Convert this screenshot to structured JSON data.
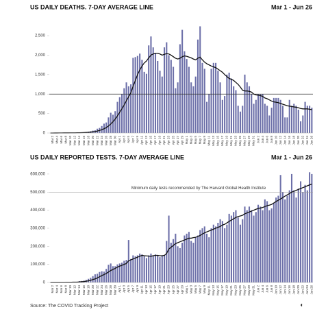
{
  "chart_data": [
    {
      "type": "bar",
      "title": "US DAILY DEATHS. 7-DAY AVERAGE LINE",
      "subtitle": "Mar 1 - Jun 26",
      "categories": [
        null,
        "Mar 2",
        null,
        "Mar 4",
        null,
        "Mar 6",
        null,
        "Mar 8",
        null,
        "Mar 10",
        null,
        "Mar 12",
        null,
        "Mar 14",
        null,
        "Mar 16",
        null,
        "Mar 18",
        null,
        "Mar 20",
        null,
        "Mar 22",
        null,
        "Mar 24",
        null,
        "Mar 26",
        null,
        "Mar 28",
        null,
        "Mar 30",
        null,
        "Apr 1",
        null,
        "Apr 3",
        null,
        "Apr 5",
        null,
        "Apr 7",
        null,
        "Apr 9",
        null,
        "Apr 11",
        null,
        "Apr 13",
        null,
        "Apr 15",
        null,
        "Apr 17",
        null,
        "Apr 19",
        null,
        "Apr 21",
        null,
        "Apr 23",
        null,
        "Apr 25",
        null,
        "Apr 27",
        null,
        "Apr 29",
        null,
        "May 1",
        null,
        "May 3",
        null,
        "May 5",
        null,
        "May 7",
        null,
        "May 9",
        null,
        "May 11",
        null,
        "May 13",
        null,
        "May 15",
        null,
        "May 17",
        null,
        "May 19",
        null,
        "May 21",
        null,
        "May 23",
        null,
        "May 25",
        null,
        "May 27",
        null,
        "May 29",
        null,
        "May 31",
        null,
        "Jun 2",
        null,
        "Jun 4",
        null,
        "Jun 6",
        null,
        "Jun 8",
        null,
        "Jun 10",
        null,
        "Jun 12",
        null,
        "Jun 14",
        null,
        "Jun 16",
        null,
        "Jun 18",
        null,
        "Jun 20",
        null,
        "Jun 22",
        null,
        "Jun 24",
        null,
        "Jun 26"
      ],
      "values": [
        0,
        1,
        2,
        3,
        4,
        2,
        3,
        4,
        3,
        5,
        7,
        8,
        10,
        12,
        15,
        20,
        25,
        35,
        45,
        60,
        70,
        110,
        130,
        180,
        240,
        270,
        400,
        520,
        470,
        560,
        800,
        920,
        1000,
        1150,
        1300,
        1200,
        1250,
        1930,
        1950,
        1980,
        2040,
        1880,
        1570,
        1520,
        2250,
        2480,
        2200,
        2050,
        1850,
        1600,
        1450,
        2200,
        2330,
        2000,
        1880,
        1700,
        1150,
        1300,
        2280,
        2650,
        2100,
        1900,
        1700,
        1300,
        1200,
        1450,
        2400,
        2740,
        1800,
        1650,
        800,
        1000,
        1650,
        1800,
        1800,
        1600,
        1300,
        850,
        950,
        1500,
        1550,
        1400,
        1200,
        1100,
        700,
        550,
        700,
        1500,
        1300,
        1200,
        1000,
        750,
        850,
        1000,
        1000,
        1000,
        750,
        700,
        450,
        650,
        900,
        900,
        900,
        850,
        700,
        400,
        400,
        850,
        700,
        750,
        700,
        600,
        300,
        450,
        800,
        700,
        700,
        650
      ],
      "line_values": [
        0,
        0,
        1,
        1,
        2,
        2,
        3,
        3,
        3,
        4,
        4,
        5,
        6,
        7,
        9,
        11,
        14,
        18,
        23,
        30,
        38,
        50,
        65,
        85,
        110,
        140,
        180,
        230,
        290,
        360,
        440,
        530,
        620,
        720,
        830,
        930,
        1030,
        1200,
        1350,
        1500,
        1620,
        1720,
        1800,
        1850,
        1930,
        2000,
        2030,
        2050,
        2050,
        2030,
        2000,
        2020,
        2040,
        2030,
        2000,
        1960,
        1920,
        1900,
        1920,
        1960,
        1980,
        1970,
        1950,
        1930,
        1900,
        1880,
        1920,
        1950,
        1880,
        1820,
        1780,
        1750,
        1720,
        1700,
        1680,
        1640,
        1600,
        1560,
        1500,
        1450,
        1400,
        1380,
        1350,
        1300,
        1250,
        1180,
        1100,
        1080,
        1080,
        1070,
        1050,
        1000,
        980,
        970,
        960,
        940,
        900,
        880,
        850,
        820,
        800,
        790,
        780,
        760,
        740,
        720,
        700,
        690,
        680,
        670,
        660,
        650,
        630,
        620,
        620,
        620,
        610,
        600
      ],
      "color": "#6d70a9",
      "line_color": "#111111",
      "ylim": [
        0,
        2800
      ],
      "yticks": [
        0,
        500,
        {
          "value": 1000,
          "label": "1,000"
        },
        {
          "value": 1500,
          "label": "1,500"
        },
        {
          "value": 2000,
          "label": "2,000"
        },
        {
          "value": 2500,
          "label": "2,500"
        }
      ],
      "reference_line": 1000,
      "grid": false
    },
    {
      "type": "bar",
      "title": "US DAILY REPORTED TESTS. 7-DAY AVERAGE LINE",
      "subtitle": "Mar 1 - Jun 26",
      "categories": [
        null,
        "Mar 2",
        null,
        "Mar 4",
        null,
        "Mar 6",
        null,
        "Mar 8",
        null,
        "Mar 10",
        null,
        "Mar 12",
        null,
        "Mar 14",
        null,
        "Mar 16",
        null,
        "Mar 18",
        null,
        "Mar 20",
        null,
        "Mar 22",
        null,
        "Mar 24",
        null,
        "Mar 26",
        null,
        "Mar 28",
        null,
        "Mar 30",
        null,
        "Apr 1",
        null,
        "Apr 3",
        null,
        "Apr 5",
        null,
        "Apr 7",
        null,
        "Apr 9",
        null,
        "Apr 11",
        null,
        "Apr 13",
        null,
        "Apr 15",
        null,
        "Apr 17",
        null,
        "Apr 19",
        null,
        "Apr 21",
        null,
        "Apr 23",
        null,
        "Apr 25",
        null,
        "Apr 27",
        null,
        "Apr 29",
        null,
        "May 1",
        null,
        "May 3",
        null,
        "May 5",
        null,
        "May 7",
        null,
        "May 9",
        null,
        "May 11",
        null,
        "May 13",
        null,
        "May 15",
        null,
        "May 17",
        null,
        "May 19",
        null,
        "May 21",
        null,
        "May 23",
        null,
        "May 25",
        null,
        "May 27",
        null,
        "May 29",
        null,
        "May 31",
        null,
        "Jun 2",
        null,
        "Jun 4",
        null,
        "Jun 6",
        null,
        "Jun 8",
        null,
        "Jun 10",
        null,
        "Jun 12",
        null,
        "Jun 14",
        null,
        "Jun 16",
        null,
        "Jun 18",
        null,
        "Jun 20",
        null,
        "Jun 22",
        null,
        "Jun 24",
        null,
        "Jun 26"
      ],
      "values": [
        0,
        0,
        0,
        0,
        0,
        1000,
        1000,
        1000,
        1000,
        2000,
        3000,
        3000,
        4000,
        7000,
        8000,
        10000,
        14000,
        20000,
        26000,
        35000,
        45000,
        48000,
        58000,
        62000,
        60000,
        75000,
        98000,
        105000,
        90000,
        90000,
        100000,
        105000,
        110000,
        120000,
        125000,
        235000,
        130000,
        150000,
        145000,
        150000,
        160000,
        155000,
        145000,
        135000,
        150000,
        160000,
        150000,
        155000,
        150000,
        140000,
        150000,
        150000,
        230000,
        370000,
        220000,
        240000,
        270000,
        200000,
        190000,
        220000,
        260000,
        270000,
        280000,
        230000,
        220000,
        250000,
        260000,
        290000,
        300000,
        310000,
        270000,
        250000,
        300000,
        320000,
        310000,
        330000,
        350000,
        340000,
        300000,
        320000,
        380000,
        370000,
        390000,
        400000,
        360000,
        320000,
        350000,
        420000,
        400000,
        420000,
        400000,
        370000,
        390000,
        430000,
        420000,
        400000,
        460000,
        450000,
        400000,
        410000,
        440000,
        470000,
        480000,
        595000,
        500000,
        460000,
        480000,
        510000,
        600000,
        510000,
        470000,
        520000,
        560000,
        500000,
        540000,
        510000,
        610000,
        600000
      ],
      "line_values": [
        0,
        0,
        0,
        0,
        0,
        0,
        0,
        1000,
        1000,
        1000,
        2000,
        2000,
        2000,
        3000,
        4000,
        5000,
        7000,
        9000,
        12000,
        16000,
        20000,
        25000,
        32000,
        38000,
        44000,
        50000,
        58000,
        66000,
        72000,
        78000,
        85000,
        90000,
        95000,
        100000,
        105000,
        120000,
        125000,
        130000,
        135000,
        140000,
        145000,
        150000,
        148000,
        147000,
        146000,
        145000,
        148000,
        150000,
        150000,
        148000,
        148000,
        150000,
        160000,
        185000,
        195000,
        205000,
        215000,
        220000,
        225000,
        230000,
        235000,
        240000,
        245000,
        245000,
        248000,
        250000,
        255000,
        260000,
        268000,
        275000,
        280000,
        285000,
        290000,
        295000,
        300000,
        305000,
        310000,
        318000,
        322000,
        330000,
        338000,
        345000,
        352000,
        360000,
        365000,
        368000,
        372000,
        380000,
        385000,
        390000,
        395000,
        400000,
        405000,
        410000,
        412000,
        415000,
        420000,
        425000,
        428000,
        432000,
        440000,
        448000,
        455000,
        462000,
        470000,
        478000,
        485000,
        492000,
        500000,
        505000,
        510000,
        515000,
        520000,
        525000,
        530000,
        535000,
        540000,
        545000
      ],
      "color": "#6d70a9",
      "line_color": "#111111",
      "ylim": [
        0,
        630000
      ],
      "yticks": [
        0,
        {
          "value": 100000,
          "label": "100,000"
        },
        {
          "value": 200000,
          "label": "200,000"
        },
        {
          "value": 300000,
          "label": "300,000"
        },
        {
          "value": 400000,
          "label": "400,000"
        },
        {
          "value": 500000,
          "label": "500,000"
        },
        {
          "value": 600000,
          "label": "600,000"
        }
      ],
      "reference_line": 500000,
      "annotation": "Minimum daily tests recommended by The Harvard Global Health Institute",
      "grid": false
    }
  ],
  "source": "Source: The COVID Tracking Project"
}
